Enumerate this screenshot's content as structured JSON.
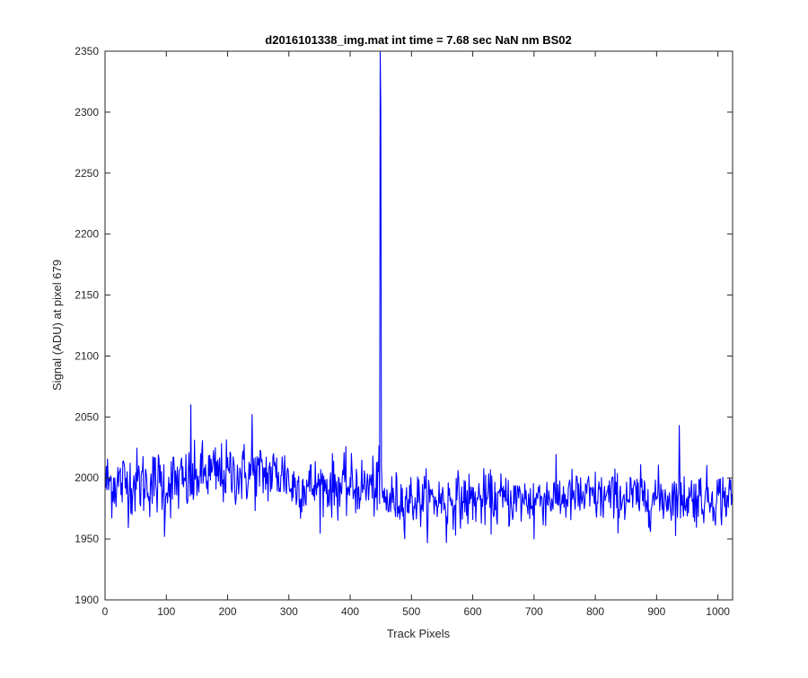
{
  "chart_data": {
    "type": "line",
    "title": "d2016101338_img.mat int time = 7.68 sec  NaN nm BS02",
    "xlabel": "Track Pixels",
    "ylabel": "Signal (ADU) at pixel 679",
    "xlim": [
      0,
      1024
    ],
    "ylim": [
      1900,
      2350
    ],
    "xticks": [
      0,
      100,
      200,
      300,
      400,
      500,
      600,
      700,
      800,
      900,
      1000
    ],
    "yticks": [
      1900,
      1950,
      2000,
      2050,
      2100,
      2150,
      2200,
      2250,
      2300,
      2350
    ],
    "grid": false,
    "legend": "none",
    "series": [
      {
        "color": "#0000ff",
        "x_start": 1,
        "x_step": 1,
        "noise_segments": [
          {
            "from": 1,
            "to": 150,
            "mean": 1996,
            "spread": 14
          },
          {
            "from": 150,
            "to": 300,
            "mean": 2003,
            "spread": 13
          },
          {
            "from": 300,
            "to": 448,
            "mean": 1993,
            "spread": 12
          },
          {
            "from": 448,
            "to": 700,
            "mean": 1982,
            "spread": 11
          },
          {
            "from": 700,
            "to": 1024,
            "mean": 1984,
            "spread": 11
          }
        ],
        "highlights": [
          {
            "x": 97,
            "y": 1952
          },
          {
            "x": 140,
            "y": 2060
          },
          {
            "x": 240,
            "y": 2052
          },
          {
            "x": 449,
            "y": 2350
          },
          {
            "x": 450,
            "y": 2300
          },
          {
            "x": 451,
            "y": 2010
          },
          {
            "x": 557,
            "y": 1947
          },
          {
            "x": 700,
            "y": 1950
          },
          {
            "x": 937,
            "y": 2043
          }
        ]
      }
    ]
  }
}
